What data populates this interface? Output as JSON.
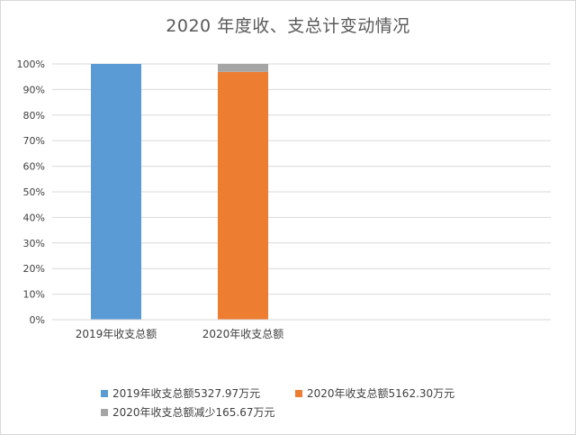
{
  "chart_data": {
    "type": "bar",
    "stacked": true,
    "title": "2020 年度收、支总计变动情况",
    "xlabel": "",
    "ylabel": "",
    "ylim": [
      0,
      100
    ],
    "yticks": [
      "0%",
      "10%",
      "20%",
      "30%",
      "40%",
      "50%",
      "60%",
      "70%",
      "80%",
      "90%",
      "100%"
    ],
    "categories": [
      "2019年收支总额",
      "2020年收支总额"
    ],
    "grid": true,
    "legend_position": "bottom",
    "series": [
      {
        "name": "2019年收支总额5327.97万元",
        "color": "#5b9bd5",
        "values": [
          100,
          0
        ]
      },
      {
        "name": "2020年收支总额5162.30万元",
        "color": "#ed7d31",
        "values": [
          0,
          96.9
        ]
      },
      {
        "name": "2020年收支总额减少165.67万元",
        "color": "#a5a5a5",
        "values": [
          0,
          3.1
        ]
      }
    ]
  }
}
